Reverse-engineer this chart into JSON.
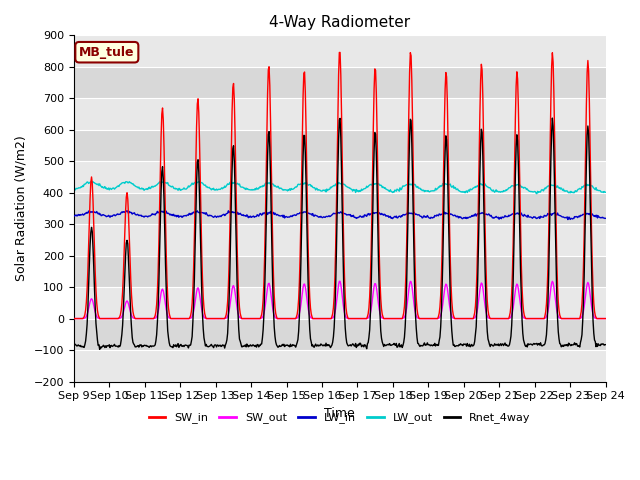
{
  "title": "4-Way Radiometer",
  "xlabel": "Time",
  "ylabel": "Solar Radiation (W/m2)",
  "station_label": "MB_tule",
  "ylim": [
    -200,
    900
  ],
  "xlim_days": 15,
  "x_tick_labels": [
    "Sep 9",
    "Sep 10",
    "Sep 11",
    "Sep 12",
    "Sep 13",
    "Sep 14",
    "Sep 15",
    "Sep 16",
    "Sep 17",
    "Sep 18",
    "Sep 19",
    "Sep 20",
    "Sep 21",
    "Sep 22",
    "Sep 23",
    "Sep 24"
  ],
  "colors": {
    "SW_in": "#FF0000",
    "SW_out": "#FF00FF",
    "LW_in": "#0000CC",
    "LW_out": "#00CCCC",
    "Rnet_4way": "#000000"
  },
  "band_colors": [
    "#E8E8E8",
    "#D8D8D8"
  ],
  "grid_color": "#FFFFFF",
  "legend_labels": [
    "SW_in",
    "SW_out",
    "LW_in",
    "LW_out",
    "Rnet_4way"
  ]
}
